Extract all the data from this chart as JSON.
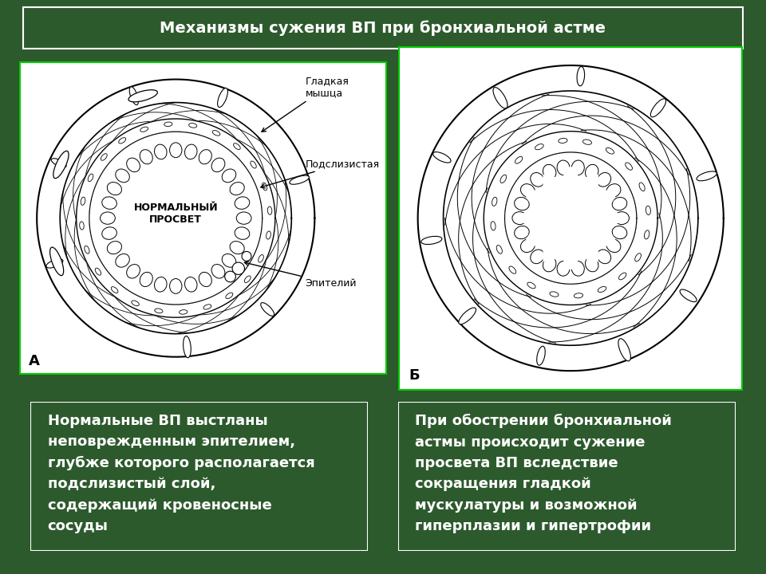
{
  "title": "Механизмы сужения ВП при бронхиальной астме",
  "title_fontsize": 14,
  "bg_color": "#2d5a2d",
  "label_A": "А",
  "label_B": "Б",
  "center_text_A": "НОРМАЛЬНЫЙ\nПРОСВЕТ",
  "annotation_smooth": "Гладкая\nмышца",
  "annotation_sub": "Подслизистая",
  "annotation_epi": "Эпителий",
  "text_left": "Нормальные ВП выстланы\nнеповрежденным эпителием,\nглубже которого располагается\nподслизистый слой,\nсодержащий кровеносные\nсосуды",
  "text_right": "При обострении бронхиальной\nастмы происходит сужение\nпросвета ВП вследствие\nсокращения гладкой\nмускулатуры и возможной\nгиперплазии и гипертрофии",
  "text_fontsize": 13,
  "white": "#ffffff",
  "black": "#000000"
}
